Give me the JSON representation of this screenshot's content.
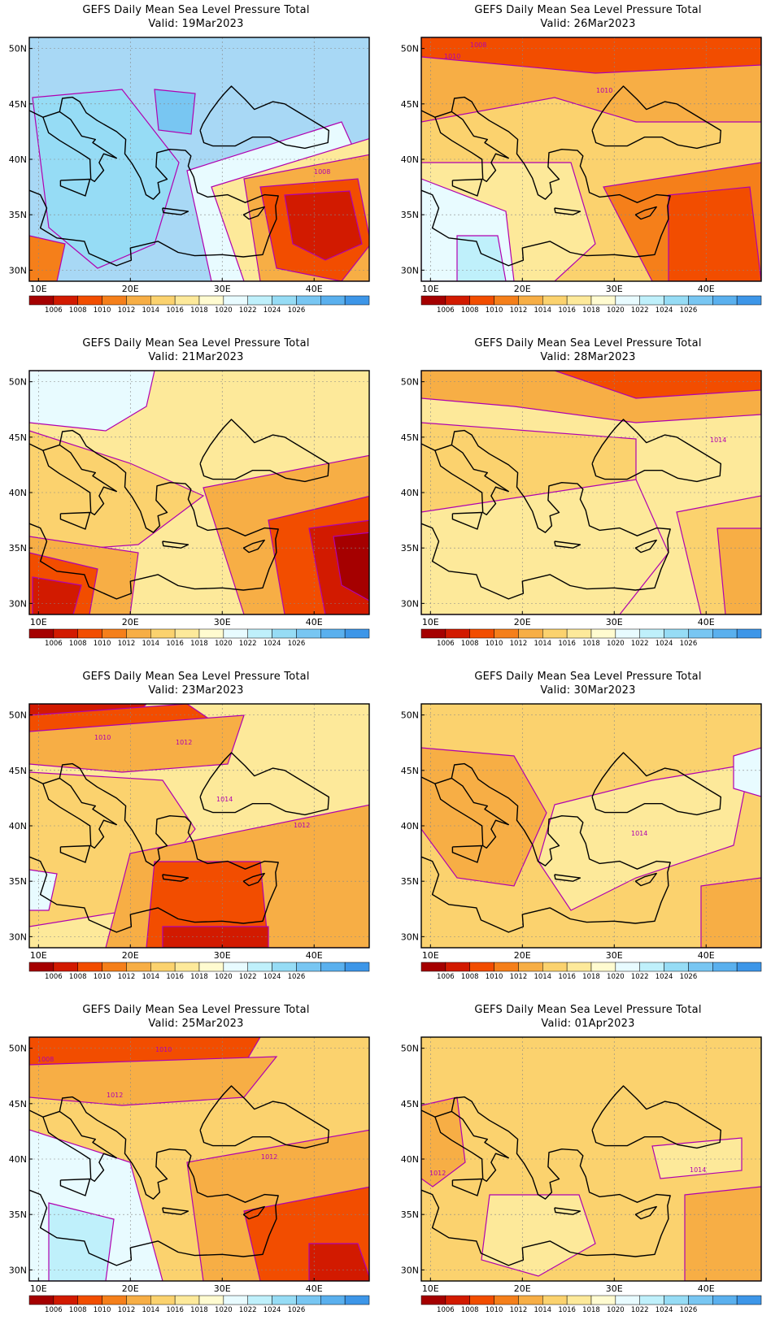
{
  "colorbar": {
    "labels": [
      "1006",
      "1008",
      "1010",
      "1012",
      "1014",
      "1016",
      "1018",
      "1020",
      "1022",
      "1024",
      "1026"
    ],
    "colors": [
      "#a50000",
      "#d21a00",
      "#f24d00",
      "#f57f1a",
      "#f7ae45",
      "#fbd26e",
      "#fde99a",
      "#fffbd0",
      "#e8fbff",
      "#bff0fb",
      "#96dcf5",
      "#78c6f2",
      "#5ab0ee",
      "#3d96e8"
    ]
  },
  "axes": {
    "lat_labels": [
      "50N",
      "45N",
      "40N",
      "35N",
      "30N"
    ],
    "lon_labels": [
      "10E",
      "20E",
      "30E",
      "40E"
    ]
  },
  "panels": [
    {
      "id": "p1",
      "title": "GEFS Daily Mean Sea Level Pressure Total",
      "valid": "Valid: 19Mar2023",
      "base": "#a8d8f5",
      "contour_labels": [
        "1008"
      ]
    },
    {
      "id": "p2",
      "title": "GEFS Daily Mean Sea Level Pressure Total",
      "valid": "Valid: 26Mar2023",
      "base": "#fbd26e",
      "contour_labels": [
        "1008",
        "1010",
        "1010"
      ]
    },
    {
      "id": "p3",
      "title": "GEFS Daily Mean Sea Level Pressure Total",
      "valid": "Valid: 21Mar2023",
      "base": "#fde99a",
      "contour_labels": []
    },
    {
      "id": "p4",
      "title": "GEFS Daily Mean Sea Level Pressure Total",
      "valid": "Valid: 28Mar2023",
      "base": "#fde99a",
      "contour_labels": [
        "1014"
      ]
    },
    {
      "id": "p5",
      "title": "GEFS Daily Mean Sea Level Pressure Total",
      "valid": "Valid: 23Mar2023",
      "base": "#fde99a",
      "contour_labels": [
        "1010",
        "1012",
        "1014",
        "1012"
      ]
    },
    {
      "id": "p6",
      "title": "GEFS Daily Mean Sea Level Pressure Total",
      "valid": "Valid: 30Mar2023",
      "base": "#fbd26e",
      "contour_labels": [
        "1014"
      ]
    },
    {
      "id": "p7",
      "title": "GEFS Daily Mean Sea Level Pressure Total",
      "valid": "Valid: 25Mar2023",
      "base": "#fbd26e",
      "contour_labels": [
        "1010",
        "1008",
        "1012",
        "1012"
      ]
    },
    {
      "id": "p8",
      "title": "GEFS Daily Mean Sea Level Pressure Total",
      "valid": "Valid: 01Apr2023",
      "base": "#fbd26e",
      "contour_labels": [
        "1012",
        "1014"
      ]
    }
  ]
}
